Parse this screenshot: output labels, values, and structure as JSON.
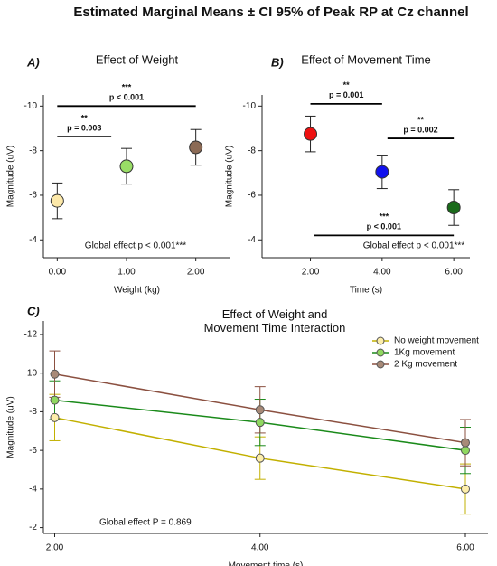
{
  "title": "Estimated Marginal Means ± CI 95% of Peak RP at Cz channel",
  "chart_data": [
    {
      "type": "scatter",
      "panel": "A)",
      "title": "Effect of Weight",
      "x_label": "Weight (kg)",
      "y_label": "Magnitude (uV)",
      "x": [
        0,
        1,
        2
      ],
      "values": [
        -5.75,
        -7.3,
        -8.15
      ],
      "errors": [
        0.8,
        0.8,
        0.8
      ],
      "colors": [
        "#fde9a9",
        "#99dd66",
        "#8b6a55"
      ],
      "xlim": [
        -0.2,
        2.5
      ],
      "xticks": [
        {
          "value": 0,
          "label": "0.00"
        },
        {
          "value": 1,
          "label": "1.00"
        },
        {
          "value": 2,
          "label": "2.00"
        }
      ],
      "ylim": [
        -10.5,
        -3.2
      ],
      "yticks": [
        -10,
        -8,
        -6,
        -4
      ],
      "invert_y": true,
      "comparisons": [
        {
          "stars": "***",
          "label": "p < 0.001"
        },
        {
          "stars": "**",
          "label": "p = 0.003"
        }
      ],
      "annotation": "Global effect p < 0.001***"
    },
    {
      "type": "scatter",
      "panel": "B)",
      "title": "Effect of Movement Time",
      "x_label": "Time (s)",
      "y_label": "Magnitude (uV)",
      "x": [
        2,
        4,
        6
      ],
      "values": [
        -8.75,
        -7.05,
        -5.45
      ],
      "errors": [
        0.8,
        0.75,
        0.8
      ],
      "colors": [
        "#ee1111",
        "#1111ee",
        "#1a6a1a"
      ],
      "xlim": [
        0.65,
        6.45
      ],
      "xticks": [
        {
          "value": 2,
          "label": "2.00"
        },
        {
          "value": 4,
          "label": "4.00"
        },
        {
          "value": 6,
          "label": "6.00"
        }
      ],
      "ylim": [
        -10.5,
        -3.2
      ],
      "yticks": [
        -10,
        -8,
        -6,
        -4
      ],
      "invert_y": true,
      "comparisons": [
        {
          "stars": "**",
          "label": "p = 0.001"
        },
        {
          "stars": "**",
          "label": "p = 0.002"
        },
        {
          "stars": "***",
          "label": "p < 0.001"
        }
      ],
      "annotation": "Global effect p < 0.001***"
    },
    {
      "type": "line",
      "panel": "C)",
      "title": "Effect of Weight and Movement Time Interaction",
      "x_label": "Movement time (s)",
      "y_label": "Magnitude (uV)",
      "x": [
        2,
        4,
        6
      ],
      "series": [
        {
          "name": "No weight movement",
          "color": "#c2b000",
          "marker_color": "#fdeeaa",
          "values": [
            -7.7,
            -5.6,
            -4.0
          ],
          "errors": [
            1.2,
            1.1,
            1.3
          ]
        },
        {
          "name": "1Kg movement",
          "color": "#1a8a1a",
          "marker_color": "#90d860",
          "values": [
            -8.6,
            -7.45,
            -6.0
          ],
          "errors": [
            1.0,
            1.2,
            1.2
          ]
        },
        {
          "name": "2 Kg movement",
          "color": "#8b5040",
          "marker_color": "#a88a78",
          "values": [
            -9.95,
            -8.1,
            -6.4
          ],
          "errors": [
            1.2,
            1.2,
            1.2
          ]
        }
      ],
      "xlim": [
        1.89,
        6.22
      ],
      "xticks": [
        {
          "value": 2,
          "label": "2.00"
        },
        {
          "value": 4,
          "label": "4.00"
        },
        {
          "value": 6,
          "label": "6.00"
        }
      ],
      "ylim": [
        -12.7,
        -1.7
      ],
      "yticks": [
        -12,
        -10,
        -8,
        -6,
        -4,
        -2
      ],
      "invert_y": true,
      "legend": "upper right",
      "annotation": "Global effect P = 0.869"
    }
  ]
}
